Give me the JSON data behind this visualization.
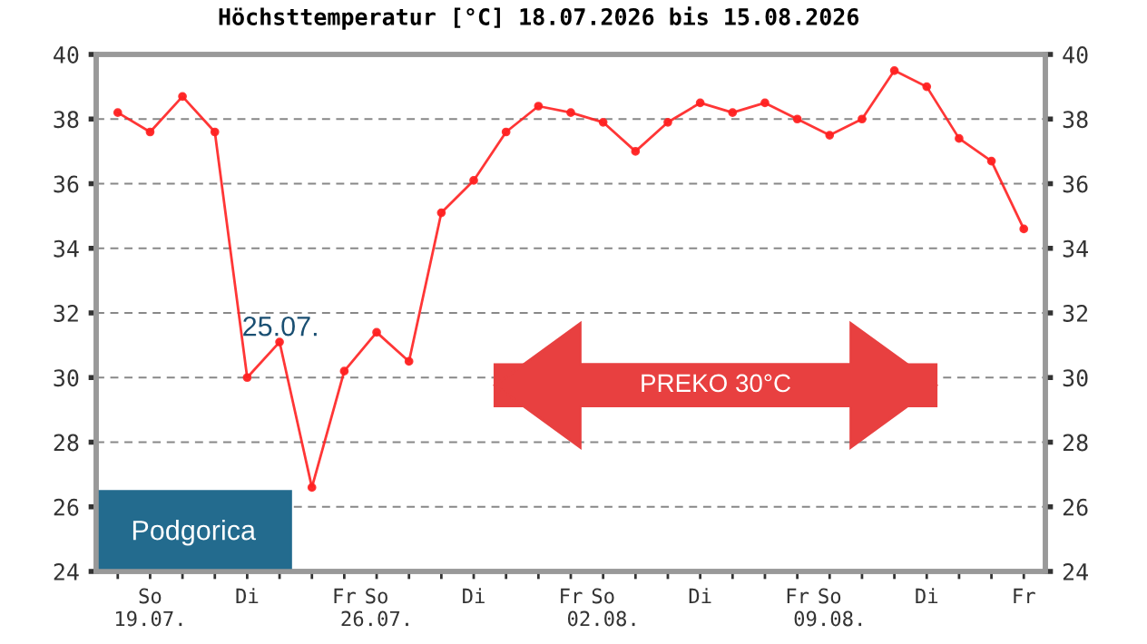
{
  "chart_data": {
    "type": "line",
    "title": "Höchsttemperatur [°C] 18.07.2026 bis 15.08.2026",
    "x": [
      "2026-07-18",
      "2026-07-19",
      "2026-07-20",
      "2026-07-21",
      "2026-07-22",
      "2026-07-23",
      "2026-07-24",
      "2026-07-25",
      "2026-07-26",
      "2026-07-27",
      "2026-07-28",
      "2026-07-29",
      "2026-07-30",
      "2026-07-31",
      "2026-08-01",
      "2026-08-02",
      "2026-08-03",
      "2026-08-04",
      "2026-08-05",
      "2026-08-06",
      "2026-08-07",
      "2026-08-08",
      "2026-08-09",
      "2026-08-10",
      "2026-08-11",
      "2026-08-12",
      "2026-08-13",
      "2026-08-14",
      "2026-08-15"
    ],
    "series": [
      {
        "color": "#ff2020",
        "values": [
          38.2,
          37.6,
          38.7,
          37.6,
          30.0,
          31.1,
          26.6,
          30.2,
          31.4,
          30.5,
          35.1,
          36.1,
          37.6,
          38.4,
          38.2,
          37.9,
          37.0,
          37.9,
          38.5,
          38.2,
          38.5,
          38.0,
          37.5,
          38.0,
          39.5,
          39.0,
          37.4,
          36.7,
          34.6
        ]
      }
    ],
    "xlim": [
      "2026-07-17T08:00",
      "2026-08-15T16:00"
    ],
    "xticks": [
      {
        "value": "2026-07-18",
        "label": null
      },
      {
        "value": "2026-07-19",
        "label": "So\n19.07."
      },
      {
        "value": "2026-07-20",
        "label": null
      },
      {
        "value": "2026-07-21",
        "label": null
      },
      {
        "value": "2026-07-22",
        "label": "Di"
      },
      {
        "value": "2026-07-23",
        "label": null
      },
      {
        "value": "2026-07-24",
        "label": null
      },
      {
        "value": "2026-07-25",
        "label": "Fr"
      },
      {
        "value": "2026-07-26",
        "label": "So\n26.07."
      },
      {
        "value": "2026-07-27",
        "label": null
      },
      {
        "value": "2026-07-28",
        "label": null
      },
      {
        "value": "2026-07-29",
        "label": "Di"
      },
      {
        "value": "2026-07-30",
        "label": null
      },
      {
        "value": "2026-07-31",
        "label": null
      },
      {
        "value": "2026-08-01",
        "label": "Fr"
      },
      {
        "value": "2026-08-02",
        "label": "So\n02.08."
      },
      {
        "value": "2026-08-03",
        "label": null
      },
      {
        "value": "2026-08-04",
        "label": null
      },
      {
        "value": "2026-08-05",
        "label": "Di"
      },
      {
        "value": "2026-08-06",
        "label": null
      },
      {
        "value": "2026-08-07",
        "label": null
      },
      {
        "value": "2026-08-08",
        "label": "Fr"
      },
      {
        "value": "2026-08-09",
        "label": "So\n09.08."
      },
      {
        "value": "2026-08-10",
        "label": null
      },
      {
        "value": "2026-08-11",
        "label": null
      },
      {
        "value": "2026-08-12",
        "label": "Di"
      },
      {
        "value": "2026-08-13",
        "label": null
      },
      {
        "value": "2026-08-14",
        "label": null
      },
      {
        "value": "2026-08-15",
        "label": "Fr"
      }
    ],
    "ylim": [
      24,
      40
    ],
    "yticks": [
      24,
      26,
      28,
      30,
      32,
      34,
      36,
      38,
      40
    ],
    "y2lim": [
      24,
      40
    ],
    "y2ticks": [
      24,
      26,
      28,
      30,
      32,
      34,
      36,
      38,
      40
    ],
    "grid": "y",
    "marker": "circle",
    "line_style": "solid",
    "annotations": [
      {
        "text": "25.07.",
        "x": "2026-07-25",
        "y": 30.2
      },
      "Podgorica",
      "PREKO 30°C"
    ]
  }
}
